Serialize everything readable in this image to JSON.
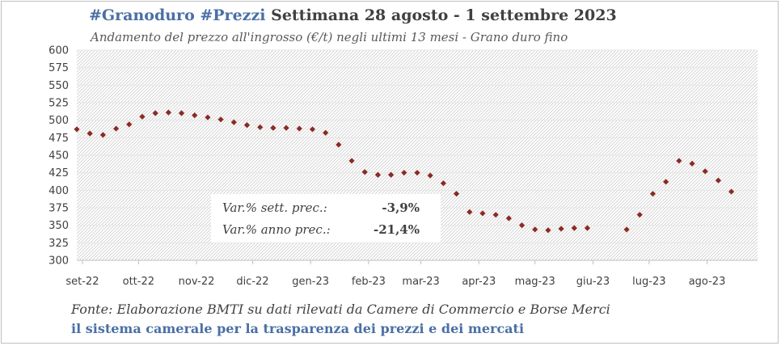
{
  "header": {
    "hashtags": "#Granoduro #Prezzi",
    "week": "Settimana 28 agosto - 1 settembre 2023",
    "subtitle": "Andamento del prezzo all'ingrosso (€/t) negli ultimi 13 mesi - Grano duro fino"
  },
  "stats": {
    "week_label": "Var.% sett. prec.:",
    "week_value": "-3,9%",
    "year_label": "Var.% anno prec.:",
    "year_value": "-21,4%"
  },
  "footer": {
    "source": "Fonte: Elaborazione BMTI su dati rilevati da Camere di Commercio e Borse Merci",
    "tagline": "il sistema camerale per la trasparenza dei prezzi e dei mercati"
  },
  "colors": {
    "marker": "#8b2a23",
    "hashtag": "#4a6fa5",
    "gridline": "#e6e6e6",
    "hatch": "#cfcfcf"
  },
  "chart_data": {
    "type": "scatter",
    "title": "Andamento del prezzo all'ingrosso (€/t) negli ultimi 13 mesi - Grano duro fino",
    "xlabel": "",
    "ylabel": "",
    "ylim": [
      300,
      600
    ],
    "yticks": [
      300,
      325,
      350,
      375,
      400,
      425,
      450,
      475,
      500,
      525,
      550,
      575,
      600
    ],
    "xticks": [
      "set-22",
      "ott-22",
      "nov-22",
      "dic-22",
      "gen-23",
      "feb-23",
      "mar-23",
      "apr-23",
      "mag-23",
      "giu-23",
      "lug-23",
      "ago-23"
    ],
    "x_start": "2022-08-29",
    "x_end": "2023-08-28",
    "grid": true,
    "legend": "none",
    "series": [
      {
        "points": [
          {
            "x": "2022-08-29",
            "y": 487
          },
          {
            "x": "2022-09-05",
            "y": 481
          },
          {
            "x": "2022-09-12",
            "y": 479
          },
          {
            "x": "2022-09-19",
            "y": 488
          },
          {
            "x": "2022-09-26",
            "y": 494
          },
          {
            "x": "2022-10-03",
            "y": 505
          },
          {
            "x": "2022-10-10",
            "y": 510
          },
          {
            "x": "2022-10-17",
            "y": 511
          },
          {
            "x": "2022-10-24",
            "y": 510
          },
          {
            "x": "2022-10-31",
            "y": 507
          },
          {
            "x": "2022-11-07",
            "y": 504
          },
          {
            "x": "2022-11-14",
            "y": 501
          },
          {
            "x": "2022-11-21",
            "y": 497
          },
          {
            "x": "2022-11-28",
            "y": 493
          },
          {
            "x": "2022-12-05",
            "y": 490
          },
          {
            "x": "2022-12-12",
            "y": 489
          },
          {
            "x": "2022-12-19",
            "y": 489
          },
          {
            "x": "2022-12-26",
            "y": 488
          },
          {
            "x": "2023-01-02",
            "y": 487
          },
          {
            "x": "2023-01-09",
            "y": 482
          },
          {
            "x": "2023-01-16",
            "y": 465
          },
          {
            "x": "2023-01-23",
            "y": 442
          },
          {
            "x": "2023-01-30",
            "y": 426
          },
          {
            "x": "2023-02-06",
            "y": 422
          },
          {
            "x": "2023-02-13",
            "y": 422
          },
          {
            "x": "2023-02-20",
            "y": 425
          },
          {
            "x": "2023-02-27",
            "y": 425
          },
          {
            "x": "2023-03-06",
            "y": 421
          },
          {
            "x": "2023-03-13",
            "y": 410
          },
          {
            "x": "2023-03-20",
            "y": 395
          },
          {
            "x": "2023-03-27",
            "y": 369
          },
          {
            "x": "2023-04-03",
            "y": 367
          },
          {
            "x": "2023-04-10",
            "y": 365
          },
          {
            "x": "2023-04-17",
            "y": 360
          },
          {
            "x": "2023-04-24",
            "y": 350
          },
          {
            "x": "2023-05-01",
            "y": 344
          },
          {
            "x": "2023-05-08",
            "y": 343
          },
          {
            "x": "2023-05-15",
            "y": 345
          },
          {
            "x": "2023-05-22",
            "y": 346
          },
          {
            "x": "2023-05-29",
            "y": 346
          },
          {
            "x": "2023-06-19",
            "y": 344
          },
          {
            "x": "2023-06-26",
            "y": 365
          },
          {
            "x": "2023-07-03",
            "y": 395
          },
          {
            "x": "2023-07-10",
            "y": 412
          },
          {
            "x": "2023-07-17",
            "y": 442
          },
          {
            "x": "2023-07-24",
            "y": 438
          },
          {
            "x": "2023-07-31",
            "y": 427
          },
          {
            "x": "2023-08-07",
            "y": 414
          },
          {
            "x": "2023-08-14",
            "y": 398
          }
        ]
      }
    ]
  }
}
